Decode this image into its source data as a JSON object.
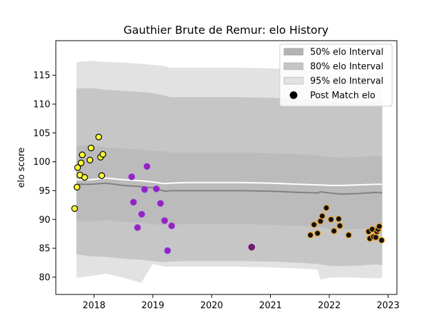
{
  "chart_data": {
    "type": "scatter",
    "title": "Gauthier Brute de Remur: elo History",
    "xlabel": "",
    "ylabel": "elo score",
    "xlim": [
      2017.35,
      2023.15
    ],
    "ylim": [
      77,
      121
    ],
    "x_ticks": [
      2018,
      2019,
      2020,
      2021,
      2022,
      2023
    ],
    "y_ticks": [
      80,
      85,
      90,
      95,
      100,
      105,
      110,
      115
    ],
    "grid": false,
    "legend": {
      "placement": "top-right",
      "entries": [
        {
          "label": "50% elo Interval",
          "color": "#b3b3b3"
        },
        {
          "label": "80% elo Interval",
          "color": "#c6c6c6"
        },
        {
          "label": "95% elo Interval",
          "color": "#e2e2e2"
        },
        {
          "label": "Post Match elo",
          "color": "#000000"
        }
      ]
    },
    "colors": {
      "band95": "#e2e2e2",
      "band80": "#c6c6c6",
      "band50": "#b3b3b3",
      "median_line": "#808080",
      "mean_line": "#ffffff"
    },
    "band_x": [
      2017.7,
      2017.95,
      2018.2,
      2018.5,
      2018.8,
      2019.0,
      2019.2,
      2019.3,
      2019.6,
      2020.0,
      2020.5,
      2021.0,
      2021.5,
      2021.8,
      2021.85,
      2022.0,
      2022.2,
      2022.5,
      2022.8,
      2022.9
    ],
    "series": [
      {
        "key": "upper95",
        "values": [
          117.3,
          117.5,
          117.3,
          117.2,
          117.0,
          116.8,
          116.6,
          116.3,
          116.3,
          116.3,
          116.3,
          116.2,
          116.0,
          115.8,
          115.6,
          115.4,
          115.3,
          115.3,
          115.5,
          115.4
        ]
      },
      {
        "key": "upper80",
        "values": [
          112.7,
          112.8,
          112.5,
          112.3,
          112.1,
          111.9,
          111.5,
          111.2,
          111.2,
          111.2,
          111.2,
          111.1,
          110.9,
          110.7,
          110.6,
          110.4,
          110.3,
          110.3,
          110.5,
          110.4
        ]
      },
      {
        "key": "upper50",
        "values": [
          102.8,
          102.8,
          102.5,
          102.3,
          102.1,
          101.9,
          101.8,
          101.6,
          101.6,
          101.6,
          101.6,
          101.5,
          101.3,
          101.1,
          101.0,
          100.8,
          100.7,
          100.8,
          101.0,
          100.9
        ]
      },
      {
        "key": "mean",
        "values": [
          96.9,
          96.9,
          97.2,
          96.9,
          96.7,
          96.5,
          96.2,
          96.3,
          96.4,
          96.4,
          96.4,
          96.3,
          96.1,
          96.0,
          96.0,
          95.9,
          95.9,
          96.0,
          96.1,
          96.1
        ]
      },
      {
        "key": "median",
        "values": [
          96.1,
          96.1,
          96.3,
          95.9,
          95.7,
          95.5,
          94.9,
          95.0,
          95.0,
          95.0,
          95.0,
          94.9,
          94.7,
          94.6,
          94.8,
          94.6,
          94.4,
          94.5,
          94.7,
          94.6
        ]
      },
      {
        "key": "lower50",
        "values": [
          89.8,
          89.6,
          89.9,
          89.6,
          89.4,
          89.2,
          89.0,
          89.1,
          89.2,
          89.2,
          89.2,
          89.1,
          88.9,
          88.7,
          88.6,
          88.4,
          88.3,
          88.4,
          88.6,
          88.5
        ]
      },
      {
        "key": "lower80",
        "values": [
          84.0,
          83.6,
          83.5,
          83.2,
          83.0,
          82.8,
          82.6,
          82.7,
          82.8,
          82.8,
          82.8,
          82.7,
          82.5,
          82.3,
          82.2,
          82.0,
          81.9,
          82.0,
          82.2,
          82.1
        ]
      },
      {
        "key": "lower95",
        "values": [
          79.9,
          80.2,
          80.6,
          79.9,
          79.0,
          82.3,
          81.8,
          81.8,
          81.8,
          81.8,
          81.8,
          81.7,
          81.5,
          81.3,
          79.6,
          79.9,
          80.0,
          79.9,
          79.8,
          79.9
        ]
      }
    ],
    "points": [
      {
        "x": 2017.67,
        "y": 91.9,
        "color": "yellow"
      },
      {
        "x": 2017.71,
        "y": 95.6,
        "color": "yellow"
      },
      {
        "x": 2017.72,
        "y": 99.0,
        "color": "yellow"
      },
      {
        "x": 2017.76,
        "y": 97.7,
        "color": "yellow"
      },
      {
        "x": 2017.78,
        "y": 99.8,
        "color": "yellow"
      },
      {
        "x": 2017.8,
        "y": 101.2,
        "color": "yellow"
      },
      {
        "x": 2017.84,
        "y": 97.3,
        "color": "yellow"
      },
      {
        "x": 2017.93,
        "y": 100.3,
        "color": "yellow"
      },
      {
        "x": 2017.95,
        "y": 102.4,
        "color": "yellow"
      },
      {
        "x": 2018.08,
        "y": 104.3,
        "color": "yellow"
      },
      {
        "x": 2018.11,
        "y": 100.8,
        "color": "yellow"
      },
      {
        "x": 2018.13,
        "y": 97.6,
        "color": "yellow"
      },
      {
        "x": 2018.15,
        "y": 101.3,
        "color": "yellow"
      },
      {
        "x": 2018.64,
        "y": 97.4,
        "color": "purple"
      },
      {
        "x": 2018.67,
        "y": 93.0,
        "color": "purple"
      },
      {
        "x": 2018.74,
        "y": 88.6,
        "color": "purple"
      },
      {
        "x": 2018.81,
        "y": 90.9,
        "color": "purple"
      },
      {
        "x": 2018.86,
        "y": 95.2,
        "color": "purple"
      },
      {
        "x": 2018.9,
        "y": 99.2,
        "color": "purple"
      },
      {
        "x": 2019.06,
        "y": 95.3,
        "color": "purple"
      },
      {
        "x": 2019.13,
        "y": 92.8,
        "color": "purple"
      },
      {
        "x": 2019.2,
        "y": 89.8,
        "color": "purple"
      },
      {
        "x": 2019.25,
        "y": 84.6,
        "color": "purple"
      },
      {
        "x": 2019.32,
        "y": 88.9,
        "color": "purple"
      },
      {
        "x": 2020.68,
        "y": 85.2,
        "color": "darkpurple"
      },
      {
        "x": 2021.68,
        "y": 87.3,
        "color": "black"
      },
      {
        "x": 2021.74,
        "y": 89.1,
        "color": "black"
      },
      {
        "x": 2021.8,
        "y": 87.6,
        "color": "black"
      },
      {
        "x": 2021.85,
        "y": 89.7,
        "color": "black"
      },
      {
        "x": 2021.88,
        "y": 90.6,
        "color": "black"
      },
      {
        "x": 2021.95,
        "y": 92.0,
        "color": "black"
      },
      {
        "x": 2022.03,
        "y": 90.0,
        "color": "black"
      },
      {
        "x": 2022.08,
        "y": 88.0,
        "color": "black"
      },
      {
        "x": 2022.16,
        "y": 90.1,
        "color": "black"
      },
      {
        "x": 2022.18,
        "y": 88.9,
        "color": "black"
      },
      {
        "x": 2022.33,
        "y": 87.3,
        "color": "black"
      },
      {
        "x": 2022.67,
        "y": 87.9,
        "color": "black"
      },
      {
        "x": 2022.69,
        "y": 86.7,
        "color": "black"
      },
      {
        "x": 2022.73,
        "y": 88.3,
        "color": "black"
      },
      {
        "x": 2022.75,
        "y": 87.0,
        "color": "black"
      },
      {
        "x": 2022.79,
        "y": 86.9,
        "color": "black"
      },
      {
        "x": 2022.81,
        "y": 87.9,
        "color": "black"
      },
      {
        "x": 2022.83,
        "y": 88.3,
        "color": "black"
      },
      {
        "x": 2022.85,
        "y": 88.8,
        "color": "black"
      },
      {
        "x": 2022.89,
        "y": 86.4,
        "color": "black"
      }
    ],
    "point_styles": {
      "yellow": {
        "fill": "#ffff33",
        "stroke": "#000000"
      },
      "purple": {
        "fill": "#9922bb",
        "stroke": "#8a2be2"
      },
      "darkpurple": {
        "fill": "#7a1a7a",
        "stroke": "#5a0a5a"
      },
      "black": {
        "fill": "#111111",
        "stroke": "#f0a020"
      }
    }
  }
}
